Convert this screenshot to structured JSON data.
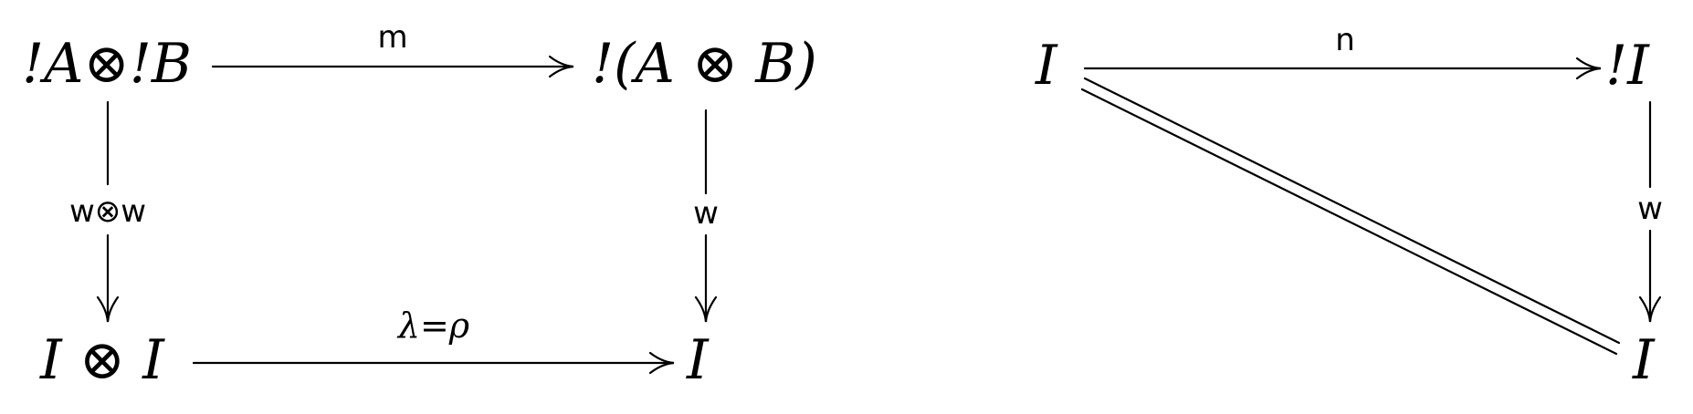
{
  "diagram_left": {
    "nodes": {
      "top_left": "!A⊗!B",
      "top_right": "!(A ⊗ B)",
      "bottom_left": "I ⊗ I",
      "bottom_right": "I"
    },
    "arrows": {
      "top": "m",
      "left": "w⊗w",
      "right": "w",
      "bottom": "λ=ρ"
    }
  },
  "diagram_right": {
    "nodes": {
      "top_left": "I",
      "top_right": "!I",
      "bottom_right": "I"
    },
    "arrows": {
      "top": "n",
      "right": "w",
      "diagonal": ""
    }
  },
  "colors": {
    "ink": "#000000",
    "background": "#ffffff"
  }
}
